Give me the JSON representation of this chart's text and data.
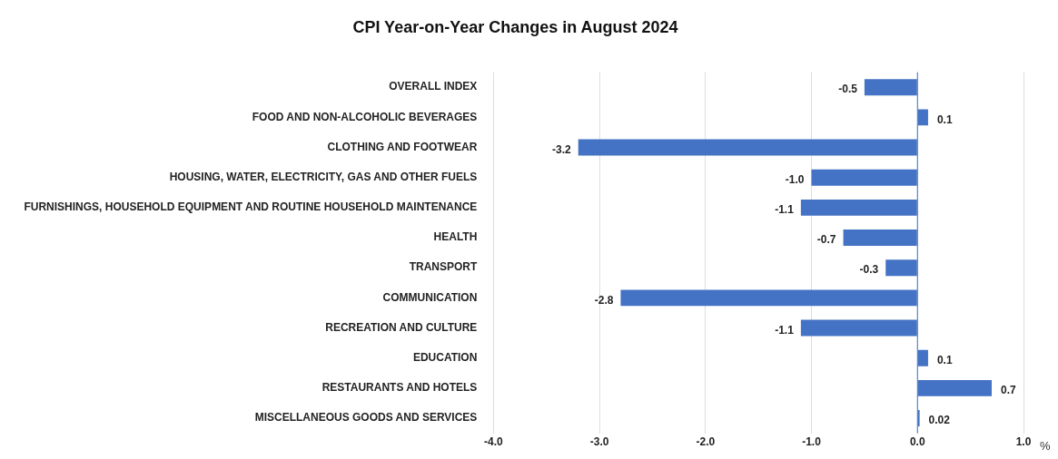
{
  "chart_data": {
    "type": "bar",
    "orientation": "horizontal",
    "title": "CPI Year-on-Year Changes in August 2024",
    "xlabel": "%",
    "categories": [
      "OVERALL INDEX",
      "FOOD AND NON-ALCOHOLIC BEVERAGES",
      "CLOTHING AND FOOTWEAR",
      "HOUSING, WATER, ELECTRICITY, GAS AND OTHER FUELS",
      "FURNISHINGS, HOUSEHOLD EQUIPMENT AND ROUTINE HOUSEHOLD MAINTENANCE",
      "HEALTH",
      "TRANSPORT",
      "COMMUNICATION",
      "RECREATION AND CULTURE",
      "EDUCATION",
      "RESTAURANTS AND HOTELS",
      "MISCELLANEOUS GOODS AND SERVICES"
    ],
    "values": [
      -0.5,
      0.1,
      -3.2,
      -1.0,
      -1.1,
      -0.7,
      -0.3,
      -2.8,
      -1.1,
      0.1,
      0.7,
      0.02
    ],
    "value_labels": [
      "-0.5",
      "0.1",
      "-3.2",
      "-1.0",
      "-1.1",
      "-0.7",
      "-0.3",
      "-2.8",
      "-1.1",
      "0.1",
      "0.7",
      "0.02"
    ],
    "color": "#4472c4",
    "xlim": [
      -4,
      1
    ],
    "xticks": [
      {
        "value": -4,
        "label": "-4.0"
      },
      {
        "value": -3,
        "label": "-3.0"
      },
      {
        "value": -2,
        "label": "-2.0"
      },
      {
        "value": -1,
        "label": "-1.0"
      },
      {
        "value": 0,
        "label": "0.0"
      },
      {
        "value": 1,
        "label": "1.0"
      }
    ],
    "ref_lines": [
      {
        "axis": "x",
        "value": 0,
        "color": "#4472c4"
      }
    ],
    "grid": "x",
    "legend": false
  }
}
